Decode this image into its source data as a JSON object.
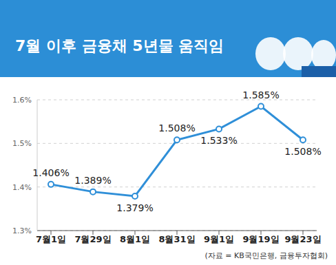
{
  "chart_data": {
    "type": "line",
    "title": "7월 이후 금융채 5년물 움직임",
    "source": "(자료 = KB국민은행, 금융투자협회)",
    "categories": [
      "7월1일",
      "7월29일",
      "8월1일",
      "8월31일",
      "9월1일",
      "9월19일",
      "9월23일"
    ],
    "values": [
      1.406,
      1.389,
      1.379,
      1.508,
      1.533,
      1.585,
      1.508
    ],
    "value_labels": [
      "1.406%",
      "1.389%",
      "1.379%",
      "1.508%",
      "1.533%",
      "1.585%",
      "1.508%"
    ],
    "color": "#2f8fd8",
    "ylim": [
      1.3,
      1.6
    ],
    "yticks": [
      {
        "value": 1.3,
        "label": "1.3%"
      },
      {
        "value": 1.4,
        "label": "1.4%"
      },
      {
        "value": 1.5,
        "label": "1.5%"
      },
      {
        "value": 1.6,
        "label": "1.6%"
      }
    ],
    "grid": true,
    "data_labels": true,
    "marker": "circle"
  }
}
